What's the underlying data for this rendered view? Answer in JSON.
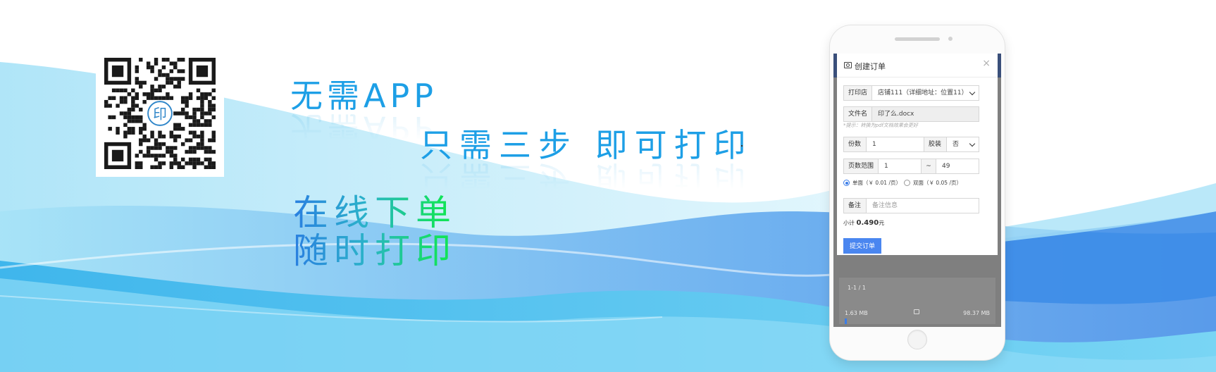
{
  "slogans": {
    "line1": "无需APP",
    "line2": "只需三步 即可打印",
    "line3": "在线下单",
    "line4": "随时打印",
    "dot": "."
  },
  "qr": {
    "center_logo_text": "印"
  },
  "colors": {
    "slogan_blue": "#1d9fe6",
    "gradient_start": "#2a7fe0",
    "gradient_end": "#12e25a",
    "submit_blue": "#4a86f0",
    "screen_topbar": "#3a4f7a"
  },
  "modal": {
    "title": "创建订单",
    "title_icon": "camera-icon",
    "close": "×",
    "shop": {
      "label": "打印店",
      "value": "店铺111（详细地址：位置11）"
    },
    "file": {
      "label": "文件名",
      "value": "印了么.docx"
    },
    "hint": "*提示：转换为pdf文档效果会更好",
    "copies": {
      "label": "份数",
      "value": "1"
    },
    "binding": {
      "label": "胶装",
      "value": "否"
    },
    "page_range": {
      "label": "页数范围",
      "from": "1",
      "separator": "~",
      "to": "49"
    },
    "print_modes": [
      {
        "label": "单面（￥ 0.01 /页）",
        "checked": true
      },
      {
        "label": "双面（￥ 0.05 /页）",
        "checked": false
      }
    ],
    "note": {
      "label": "备注",
      "placeholder": "备注信息"
    },
    "subtotal": {
      "prefix": "小计",
      "amount": "0.490",
      "unit": "元"
    },
    "submit_label": "提交订单"
  },
  "behind_page": {
    "page_indicator": "1-1 / 1",
    "size_left": "1.63 MB",
    "size_right": "98.37 MB"
  }
}
